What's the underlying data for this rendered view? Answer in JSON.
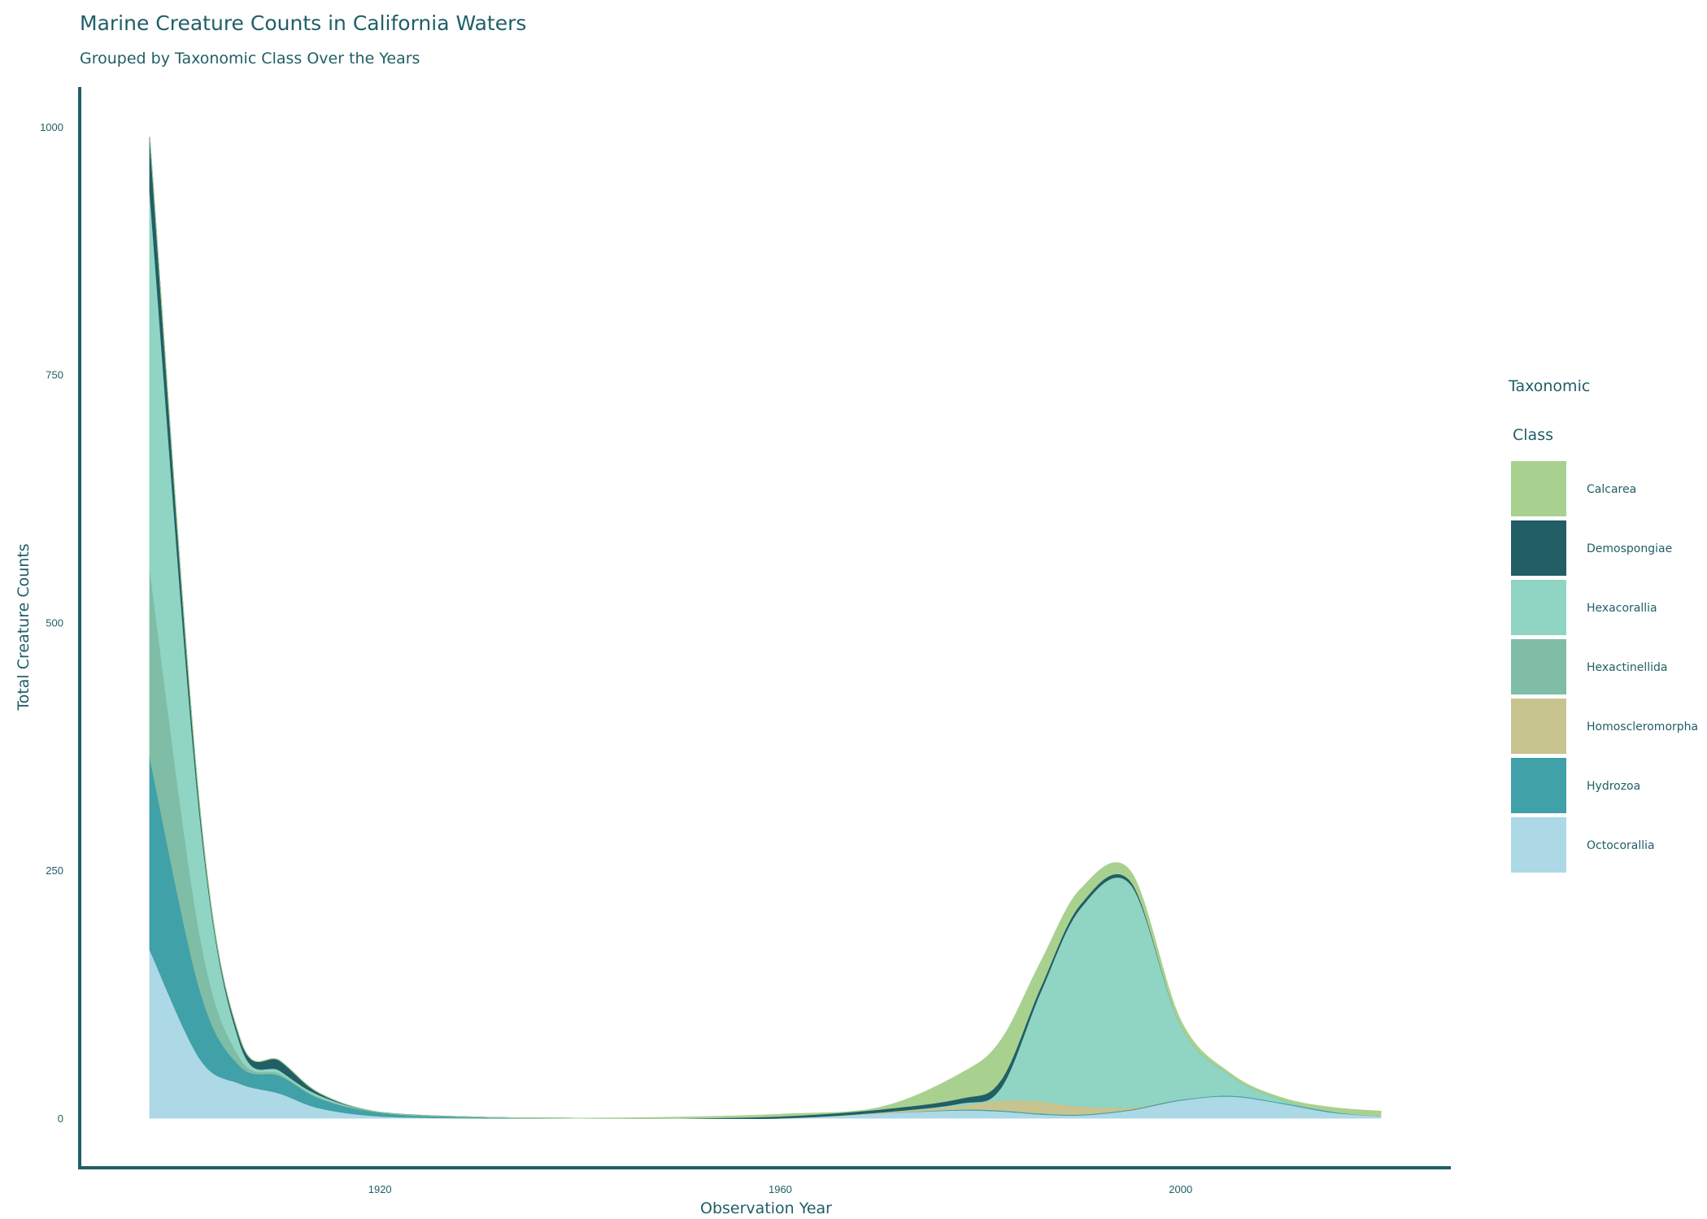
{
  "chart_data": {
    "type": "area",
    "stacked": true,
    "smooth": true,
    "title": "Marine Creature Counts in California Waters",
    "subtitle": "Grouped by Taxonomic Class Over the Years",
    "xlabel": "Observation Year",
    "ylabel": "Total Creature Counts",
    "xlim": [
      1890,
      2027
    ],
    "ylim": [
      -50,
      1040
    ],
    "x_ticks": [
      1920,
      1960,
      2000
    ],
    "y_ticks": [
      0,
      250,
      500,
      750,
      1000
    ],
    "grid": false,
    "legend": {
      "title_lines": [
        "Taxonomic",
        "Class"
      ],
      "position": "right"
    },
    "x": [
      1897,
      1902,
      1906,
      1910,
      1914,
      1920,
      1930,
      1940,
      1950,
      1960,
      1970,
      1978,
      1982,
      1986,
      1990,
      1995,
      2000,
      2005,
      2010,
      2015,
      2020
    ],
    "series": [
      {
        "name": "Octocorallia",
        "color": "#add8e6",
        "values": [
          170,
          60,
          35,
          25,
          10,
          2,
          0,
          0,
          0,
          0,
          5,
          8,
          7,
          4,
          3,
          8,
          18,
          22,
          15,
          6,
          2
        ]
      },
      {
        "name": "Hydrozoa",
        "color": "#40a1a8",
        "values": [
          195,
          70,
          18,
          18,
          10,
          4,
          1,
          0,
          0,
          0,
          0,
          1,
          1,
          1,
          1,
          1,
          1,
          1,
          1,
          1,
          0
        ]
      },
      {
        "name": "Homoscleromorpha",
        "color": "#c8c48f",
        "values": [
          0,
          0,
          0,
          0,
          0,
          0,
          0,
          0,
          0,
          0,
          1,
          4,
          10,
          12,
          8,
          2,
          0,
          0,
          0,
          0,
          0
        ]
      },
      {
        "name": "Hexactinellida",
        "color": "#7fbda6",
        "values": [
          190,
          55,
          8,
          2,
          1,
          0,
          0,
          0,
          0,
          0,
          0,
          0,
          0,
          0,
          0,
          0,
          0,
          0,
          0,
          0,
          0
        ]
      },
      {
        "name": "Hexacorallia",
        "color": "#90d4c3",
        "values": [
          380,
          120,
          15,
          3,
          2,
          0,
          0,
          0,
          0,
          0,
          0,
          2,
          12,
          110,
          200,
          225,
          75,
          20,
          3,
          0,
          0
        ]
      },
      {
        "name": "Demospongiae",
        "color": "#225e66",
        "values": [
          55,
          8,
          5,
          10,
          2,
          0,
          0,
          0,
          0,
          2,
          3,
          5,
          8,
          5,
          4,
          3,
          0,
          0,
          0,
          0,
          0
        ]
      },
      {
        "name": "Calcarea",
        "color": "#a8d190",
        "values": [
          0,
          0,
          0,
          0,
          0,
          0,
          0,
          0,
          1,
          2,
          2,
          25,
          40,
          25,
          15,
          10,
          5,
          2,
          2,
          4,
          5
        ]
      }
    ],
    "legend_order": [
      "Calcarea",
      "Demospongiae",
      "Hexacorallia",
      "Hexactinellida",
      "Homoscleromorpha",
      "Hydrozoa",
      "Octocorallia"
    ],
    "axis_color": "#1f5f66"
  }
}
